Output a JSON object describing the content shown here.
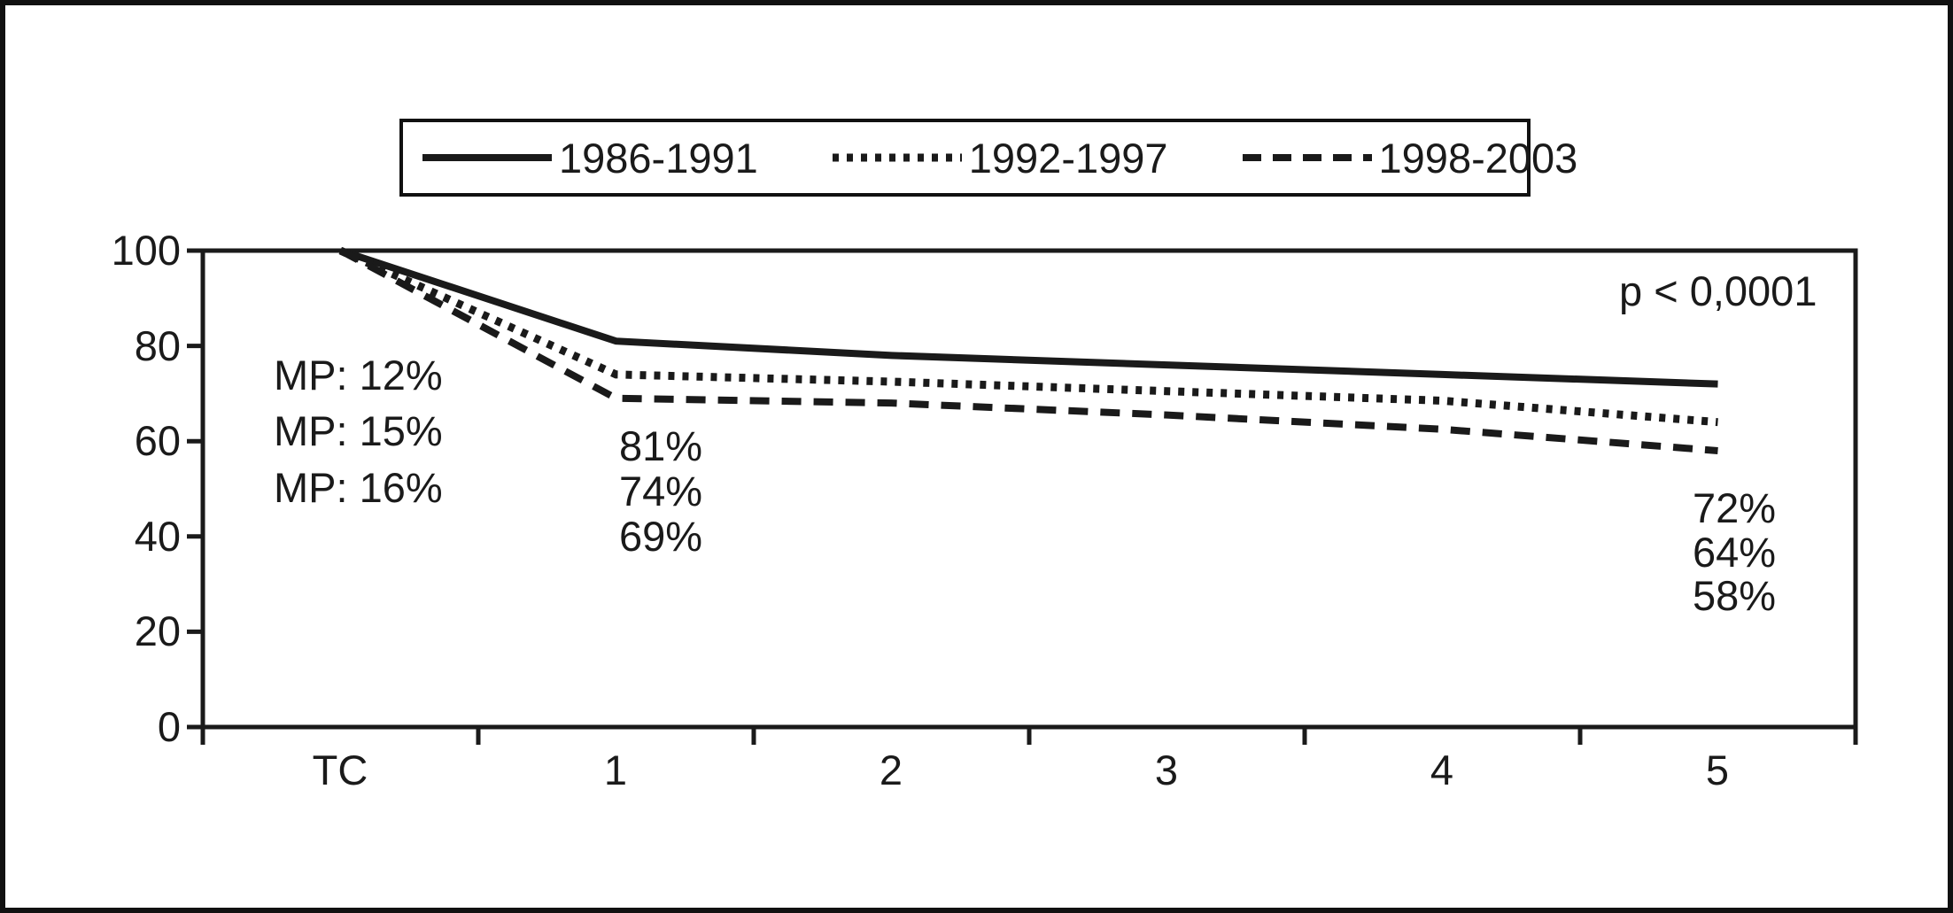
{
  "chart_data": {
    "type": "line",
    "x": [
      "TC",
      "1",
      "2",
      "3",
      "4",
      "5"
    ],
    "y_ticks": [
      "100",
      "80",
      "60",
      "40",
      "20",
      "0"
    ],
    "ylim": [
      0,
      100
    ],
    "grid": false,
    "legend_position": "top-center",
    "line_color": "#1a1a1a",
    "series": [
      {
        "name": "1986-1991",
        "style": "solid",
        "color": "#1a1a1a",
        "values": [
          100,
          81,
          78,
          76,
          74,
          72
        ]
      },
      {
        "name": "1992-1997",
        "style": "dotted",
        "color": "#1a1a1a",
        "values": [
          100,
          74,
          72.5,
          70.5,
          68.5,
          64
        ]
      },
      {
        "name": "1998-2003",
        "style": "dashed",
        "color": "#1a1a1a",
        "values": [
          100,
          69,
          68,
          65.5,
          62.5,
          58
        ]
      }
    ],
    "annotations": {
      "mp": [
        "MP: 12%",
        "MP: 15%",
        "MP: 16%"
      ],
      "year1": [
        "81%",
        "74%",
        "69%"
      ],
      "year5": [
        "72%",
        "64%",
        "58%"
      ],
      "p_value": "p < 0,0001"
    }
  }
}
